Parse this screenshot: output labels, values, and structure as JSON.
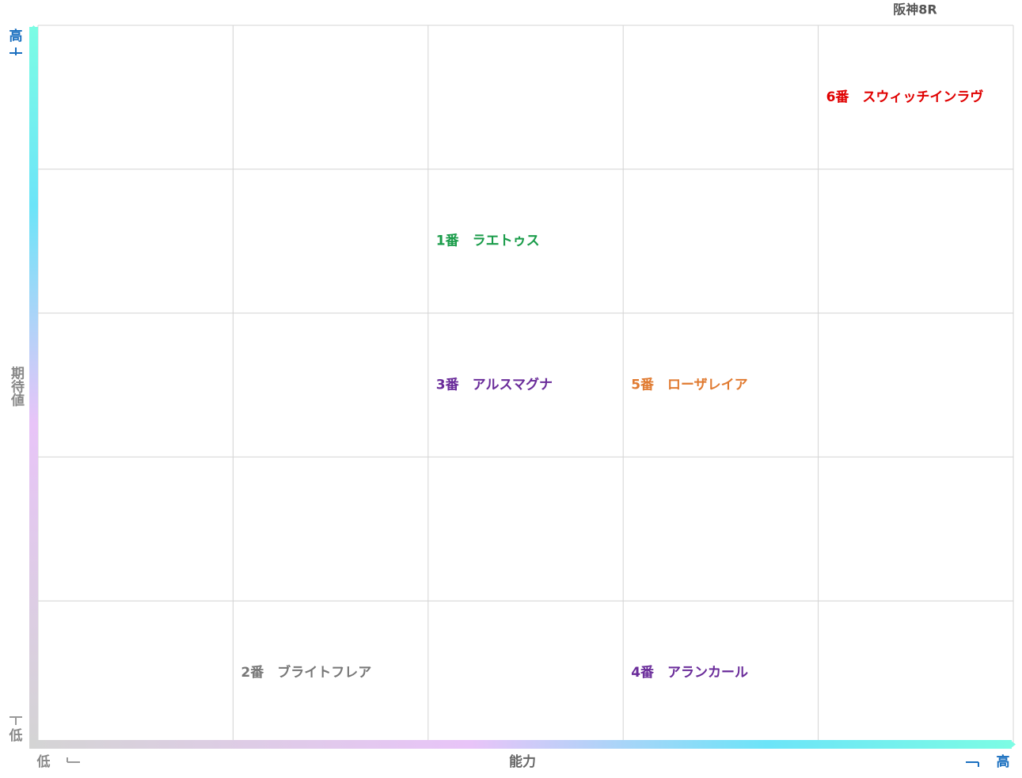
{
  "header": {
    "title": "阪神8R"
  },
  "x_axis": {
    "label": "能力",
    "low": "低",
    "high": "高"
  },
  "y_axis": {
    "label": "期待値",
    "low": "低",
    "high": "高"
  },
  "grid": {
    "columns": 5,
    "rows": 5
  },
  "entries": [
    {
      "label": "6番　スウィッチインラヴ",
      "color": "#e00000",
      "ability": 5,
      "expectation": 5
    },
    {
      "label": "1番　ラエトゥス",
      "color": "#1a9c4a",
      "ability": 3,
      "expectation": 4
    },
    {
      "label": "3番　アルスマグナ",
      "color": "#6a2c9a",
      "ability": 3,
      "expectation": 3
    },
    {
      "label": "5番　ローザレイア",
      "color": "#e07a30",
      "ability": 4,
      "expectation": 3
    },
    {
      "label": "2番　ブライトフレア",
      "color": "#777777",
      "ability": 2,
      "expectation": 1
    },
    {
      "label": "4番　アランカール",
      "color": "#6a2c9a",
      "ability": 4,
      "expectation": 1
    }
  ]
}
